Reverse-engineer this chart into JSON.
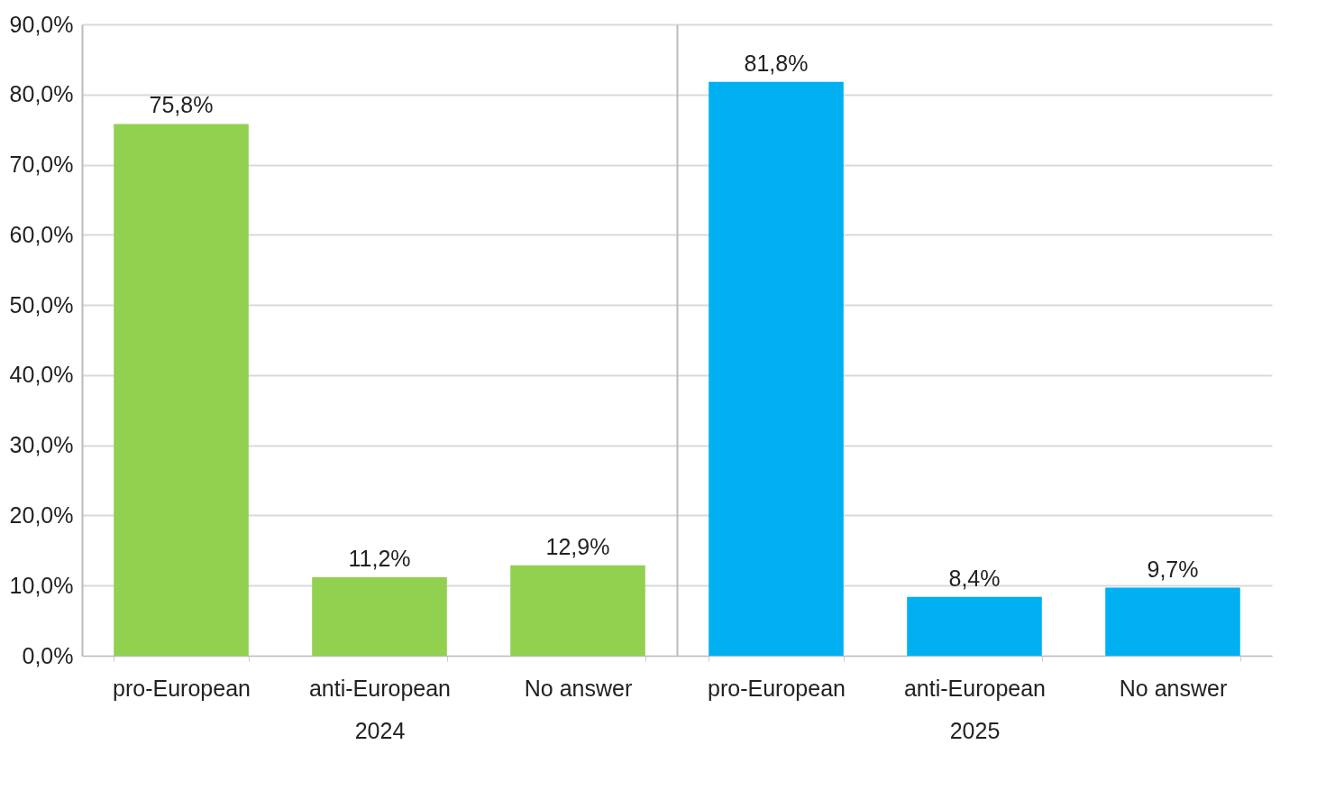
{
  "chart_data": [
    {
      "type": "bar",
      "xlabel": "2024",
      "categories": [
        "pro-European",
        "anti-European",
        "No answer"
      ],
      "values": [
        75.8,
        11.2,
        12.9
      ],
      "color": "#92d050",
      "value_labels": [
        "75,8%",
        "11,2%",
        "12,9%"
      ],
      "ylim": [
        0,
        90
      ],
      "yticks": [
        {
          "value": 0,
          "label": "0,0%"
        },
        {
          "value": 10,
          "label": "10,0%"
        },
        {
          "value": 20,
          "label": "20,0%"
        },
        {
          "value": 30,
          "label": "30,0%"
        },
        {
          "value": 40,
          "label": "40,0%"
        },
        {
          "value": 50,
          "label": "50,0%"
        },
        {
          "value": 60,
          "label": "60,0%"
        },
        {
          "value": 70,
          "label": "70,0%"
        },
        {
          "value": 80,
          "label": "80,0%"
        },
        {
          "value": 90,
          "label": "90,0%"
        }
      ],
      "grid": "y"
    },
    {
      "type": "bar",
      "xlabel": "2025",
      "categories": [
        "pro-European",
        "anti-European",
        "No answer"
      ],
      "values": [
        81.8,
        8.4,
        9.7
      ],
      "color": "#00b0f0",
      "value_labels": [
        "81,8%",
        "8,4%",
        "9,7%"
      ],
      "ylim": [
        0,
        90
      ],
      "yticks": [
        0,
        10,
        20,
        30,
        40,
        50,
        60,
        70,
        80,
        90
      ],
      "grid": "y",
      "tick_labels": "x"
    }
  ]
}
